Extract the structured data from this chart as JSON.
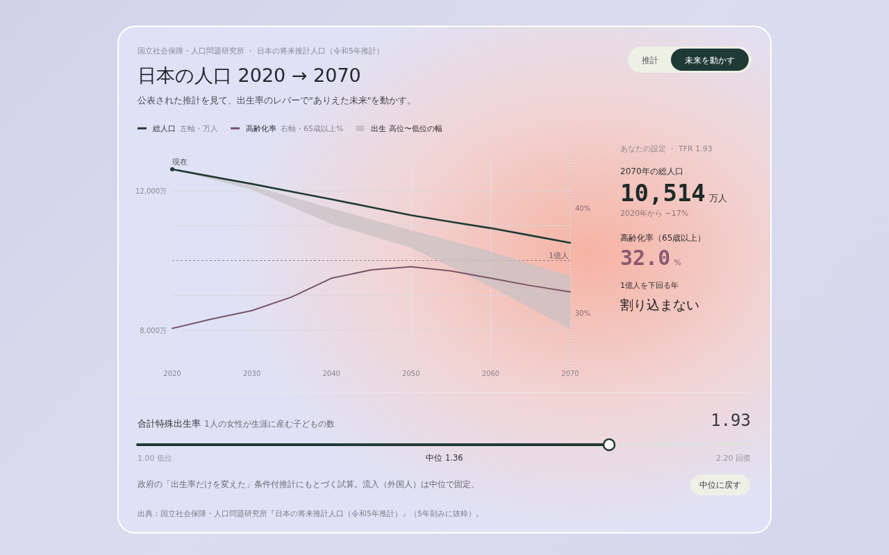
{
  "chart_data": {
    "type": "line",
    "title": "日本の人口 2020 → 2070",
    "subtitle": "公表された推計を見て、出生率のレバーで\"ありえた未来\"を動かす。",
    "x": [
      2020,
      2025,
      2030,
      2035,
      2040,
      2045,
      2050,
      2055,
      2060,
      2065,
      2070
    ],
    "series": [
      {
        "name": "総人口 左軸・万人",
        "color": "#1f3a34",
        "values": [
          12620,
          12410,
          12200,
          11980,
          11760,
          11530,
          11300,
          11110,
          10930,
          10720,
          10510
        ]
      },
      {
        "name": "高齢化率 右軸・65歳以上%",
        "color": "#7a5468",
        "axis": "y2",
        "values": [
          28.5,
          29.4,
          30.2,
          31.5,
          33.3,
          34.1,
          34.4,
          34.0,
          33.3,
          32.6,
          32.0
        ]
      },
      {
        "name": "出生 高位〜低位の幅",
        "type": "area",
        "color": "#c9c1c4",
        "x": [
          2020,
          2030,
          2040,
          2050,
          2060,
          2070
        ],
        "values": [
          null,
          null,
          null,
          null,
          null,
          null
        ],
        "lower": [
          12620,
          12040,
          11050,
          10370,
          9250,
          8024
        ],
        "upper": [
          12620,
          12150,
          11500,
          10870,
          10260,
          9549
        ]
      }
    ],
    "xlim": [
      2020,
      2070
    ],
    "xticks": [
      2020,
      2030,
      2040,
      2050,
      2060,
      2070
    ],
    "ylim": [
      7000,
      13000
    ],
    "yticks": [
      {
        "value": 8000,
        "label": "8,000万"
      },
      {
        "value": 9000,
        "label": null
      },
      {
        "value": 11000,
        "label": null
      },
      {
        "value": 12000,
        "label": "12,000万"
      }
    ],
    "y2lim": [
      25,
      45
    ],
    "y2ticks": [
      {
        "value": 30,
        "label": "30%"
      },
      {
        "value": 40,
        "label": "40%"
      }
    ],
    "grid": true,
    "legend": "top left",
    "ref_lines": [
      {
        "axis": "y",
        "value": 10000,
        "label": "1億人",
        "line_style": "dashed"
      },
      {
        "axis": "x",
        "value": 2070,
        "label": null,
        "line_style": "dotted"
      }
    ],
    "annotations": [
      "国立社会保障・人口問題研究所 ・ 日本の将来推計人口（令和5年推計）",
      "推計",
      "未来を動かす",
      {
        "text": "現在",
        "x": 2020,
        "y": 12620
      },
      "あなたの設定 ・ TFR 1.93",
      "2070年の総人口",
      "10,514",
      "万人",
      "2020年から −17%",
      "高齢化率（65歳以上）",
      "32.0",
      "%",
      "1億人を下回る年",
      "割り込まない",
      "合計特殊出生率",
      "1人の女性が生涯に産む子どもの数",
      "1.93",
      "1.00 低位",
      "中位 1.36",
      "2.20 回復",
      "政府の「出生率だけを変えた」条件付推計にもとづく試算。流入（外国人）は中位で固定。",
      "中位に戻す",
      "出典：国立社会保障・人口問題研究所『日本の将来推計人口（令和5年推計）』（5年刻みに抜粋）。"
    ]
  }
}
